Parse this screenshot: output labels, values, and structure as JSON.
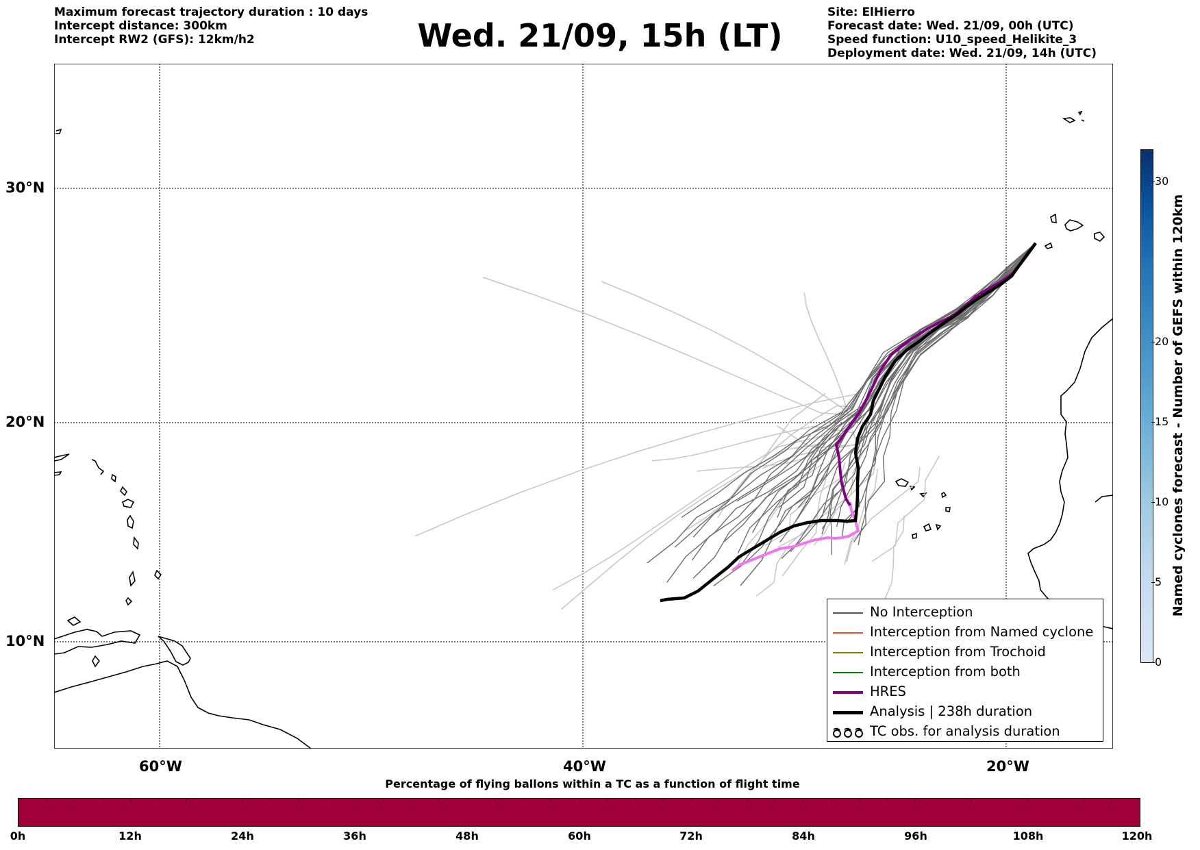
{
  "header_left": {
    "line1": "Maximum forecast trajectory duration : 10 days",
    "line2": "Intercept distance: 300km",
    "line3": "Intercept RW2 (GFS):  12km/h2"
  },
  "title": "Wed. 21/09, 15h (LT)",
  "header_right": {
    "site": "Site: ElHierro",
    "forecast_date": "Forecast date: Wed. 21/09, 00h (UTC)",
    "speed_function": "Speed function: U10_speed_Helikite_3",
    "deployment_date": "Deployment date: Wed. 21/09, 14h (UTC)"
  },
  "map": {
    "lat_labels": [
      "30°N",
      "20°N",
      "10°N"
    ],
    "lon_labels": [
      "60°W",
      "40°W",
      "20°W"
    ],
    "colors": {
      "no_interception": "#555555",
      "named_cyclone": "#e8541c",
      "trochoid": "#808000",
      "both": "#008000",
      "hres": "#800080",
      "hres_late": "#ee77ee",
      "analysis": "#000000",
      "faint": "#c8c8c8"
    }
  },
  "legend": {
    "items": [
      {
        "label": "No Interception",
        "color": "#555555"
      },
      {
        "label": "Interception from Named cyclone",
        "color": "#e8541c"
      },
      {
        "label": "Interception from Trochoid",
        "color": "#808000"
      },
      {
        "label": "Interception from both",
        "color": "#008000"
      },
      {
        "label": "HRES",
        "color": "#800080"
      },
      {
        "label": "Analysis | 238h duration",
        "color": "#000000"
      },
      {
        "label": "TC obs. for analysis duration",
        "icon": "cyclone-symbols"
      }
    ]
  },
  "colorbar_right": {
    "label": "Named cyclones forecast - Number of GEFS within 120km",
    "ticks": [
      "0",
      "5",
      "10",
      "15",
      "20",
      "30"
    ],
    "max": 32
  },
  "colorbar_bottom": {
    "title": "Percentage of flying ballons within a TC as a function of flight time",
    "ticks": [
      "0h",
      "12h",
      "24h",
      "36h",
      "48h",
      "60h",
      "72h",
      "84h",
      "96h",
      "108h",
      "120h"
    ],
    "color": "#a0003a"
  }
}
